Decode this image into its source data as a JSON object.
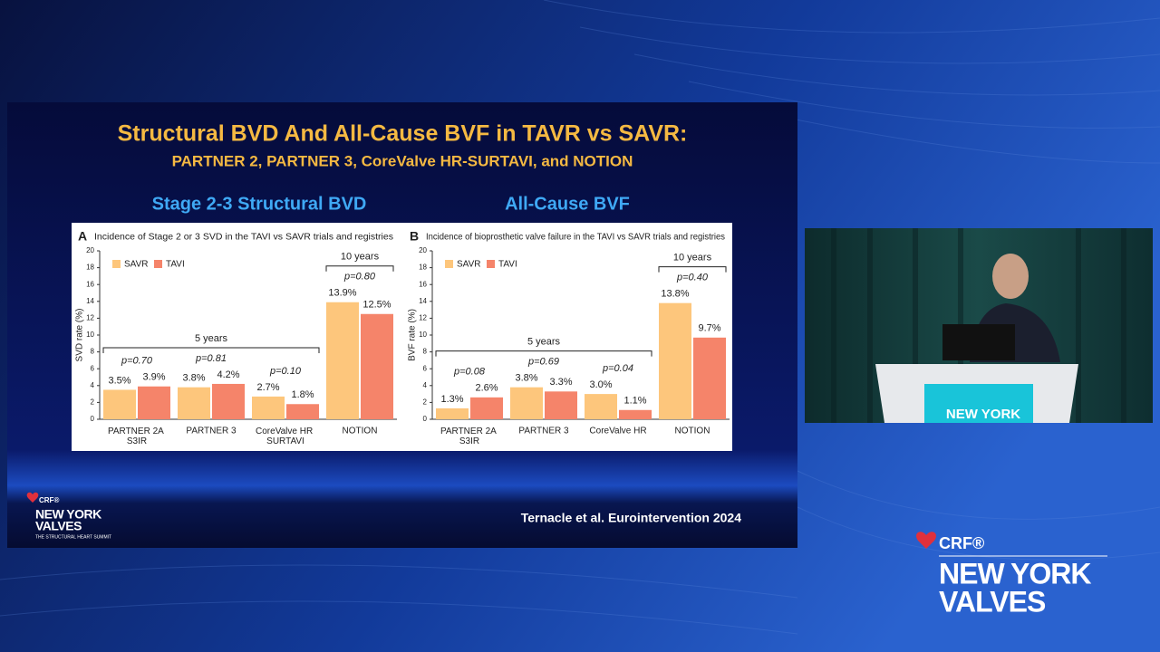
{
  "slide": {
    "title": "Structural BVD And All-Cause BVF in TAVR vs SAVR:",
    "subtitle": "PARTNER 2, PARTNER 3, CoreValve HR-SURTAVI, and NOTION",
    "left_heading": "Stage 2-3 Structural BVD",
    "right_heading": "All-Cause BVF",
    "citation": "Ternacle et al. Eurointervention 2024",
    "logo": {
      "brand": "CRF®",
      "line1": "NEW YORK",
      "line2": "VALVES",
      "tagline": "THE STRUCTURAL HEART SUMMIT"
    }
  },
  "video": {
    "podium_text": "NEW YORK"
  },
  "broadcast_logo": {
    "brand": "CRF®",
    "line1": "NEW YORK",
    "line2": "VALVES"
  },
  "chart_data": [
    {
      "type": "bar",
      "panel": "A",
      "title": "Incidence of Stage 2 or 3 SVD in the TAVI vs SAVR trials and registries",
      "y_label": "SVD rate (%)",
      "categories": [
        "PARTNER 2A S3IR",
        "PARTNER 3",
        "CoreValve HR SURTAVI",
        "NOTION"
      ],
      "series": [
        {
          "name": "SAVR",
          "color": "#fdc67c",
          "values": [
            3.5,
            3.8,
            2.7,
            13.9
          ],
          "value_labels": [
            "3.5%",
            "3.8%",
            "2.7%",
            "13.9%"
          ]
        },
        {
          "name": "TAVI",
          "color": "#f5846a",
          "values": [
            3.9,
            4.2,
            1.8,
            12.5
          ],
          "value_labels": [
            "3.9%",
            "4.2%",
            "1.8%",
            "12.5%"
          ]
        }
      ],
      "p_values": [
        "p=0.70",
        "p=0.81",
        "p=0.10",
        "p=0.80"
      ],
      "follow_up": [
        "5 years",
        "10 years"
      ],
      "ylim": [
        0,
        20
      ],
      "yticks": [
        0,
        2,
        4,
        6,
        8,
        10,
        12,
        14,
        16,
        18,
        20
      ],
      "legend": "top-left"
    },
    {
      "type": "bar",
      "panel": "B",
      "title": "Incidence of bioprosthetic valve failure in the TAVI vs SAVR trials and registries",
      "y_label": "BVF rate (%)",
      "categories": [
        "PARTNER 2A S3IR",
        "PARTNER 3",
        "CoreValve HR",
        "NOTION"
      ],
      "series": [
        {
          "name": "SAVR",
          "color": "#fdc67c",
          "values": [
            1.3,
            3.8,
            3.0,
            13.8
          ],
          "value_labels": [
            "1.3%",
            "3.8%",
            "3.0%",
            "13.8%"
          ]
        },
        {
          "name": "TAVI",
          "color": "#f5846a",
          "values": [
            2.6,
            3.3,
            1.1,
            9.7
          ],
          "value_labels": [
            "2.6%",
            "3.3%",
            "1.1%",
            "9.7%"
          ]
        }
      ],
      "p_values": [
        "p=0.08",
        "p=0.69",
        "p=0.04",
        "p=0.40"
      ],
      "follow_up": [
        "5 years",
        "10 years"
      ],
      "ylim": [
        0,
        20
      ],
      "yticks": [
        0,
        2,
        4,
        6,
        8,
        10,
        12,
        14,
        16,
        18,
        20
      ],
      "legend": "top-left"
    }
  ]
}
